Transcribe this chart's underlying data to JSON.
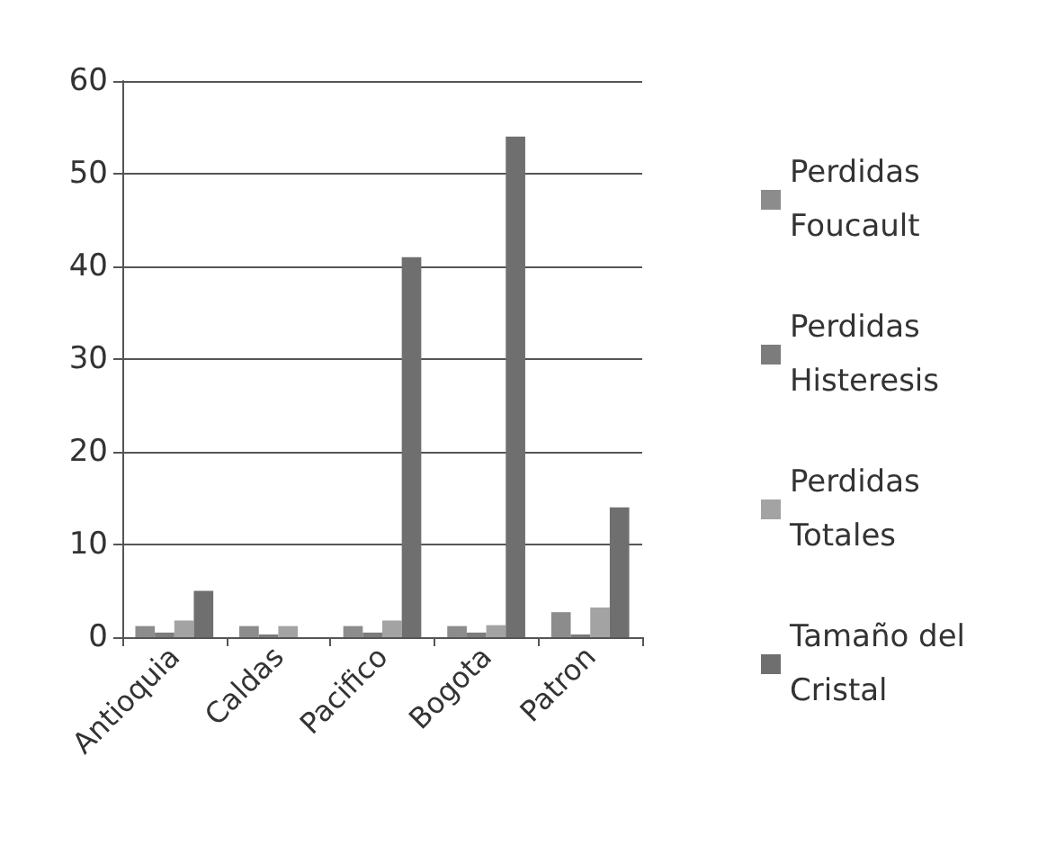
{
  "chart_data": {
    "type": "bar",
    "categories": [
      "Antioquia",
      "Caldas",
      "Pacifico",
      "Bogota",
      "Patron"
    ],
    "series": [
      {
        "name": "Perdidas Foucault",
        "color": "#8c8c8c",
        "values": [
          1.2,
          1.2,
          1.2,
          1.2,
          2.7
        ]
      },
      {
        "name": "Perdidas Histeresis",
        "color": "#7c7c7c",
        "values": [
          0.5,
          0.3,
          0.5,
          0.5,
          0.3
        ]
      },
      {
        "name": "Perdidas Totales",
        "color": "#a3a3a3",
        "values": [
          1.8,
          1.2,
          1.8,
          1.3,
          3.2
        ]
      },
      {
        "name": "Tamaño del Cristal",
        "color": "#6f6f6f",
        "values": [
          5,
          0,
          41,
          54,
          14
        ]
      }
    ],
    "ylim": [
      0,
      60
    ],
    "yticks": [
      0,
      10,
      20,
      30,
      40,
      50,
      60
    ],
    "grid": "y",
    "legend": "right"
  }
}
